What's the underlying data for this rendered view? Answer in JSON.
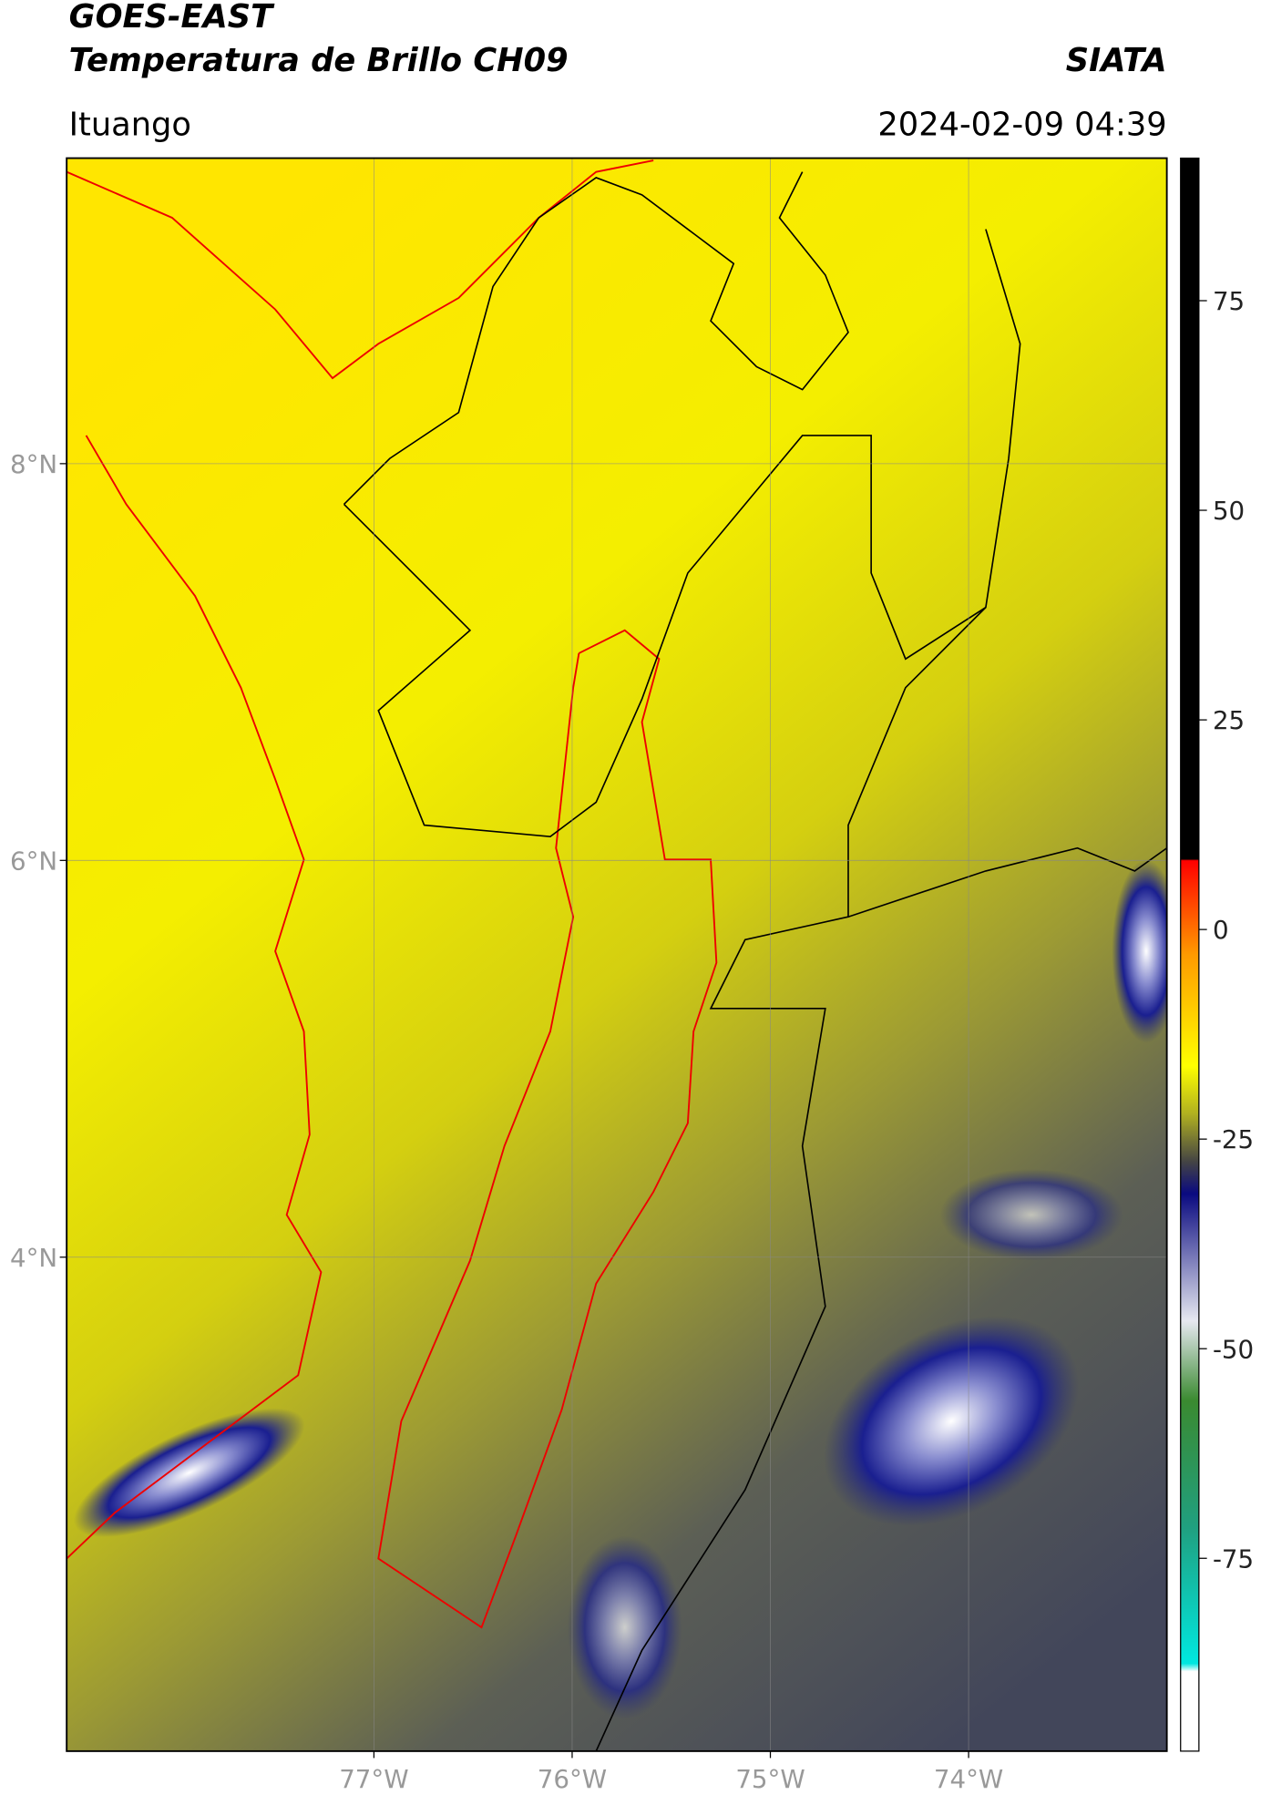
{
  "header": {
    "title_line1": "GOES-EAST",
    "title_line2": "Temperatura de Brillo CH09",
    "agency": "SIATA",
    "location": "Ituango",
    "datetime": "2024-02-09 04:39"
  },
  "map": {
    "lat_range": [
      1.51,
      9.54
    ],
    "lon_range": [
      -78.55,
      -73.0
    ],
    "lat_ticks": [
      {
        "value": 8,
        "label": "8°N"
      },
      {
        "value": 6,
        "label": "6°N"
      },
      {
        "value": 4,
        "label": "4°N"
      }
    ],
    "lon_ticks": [
      {
        "value": -77,
        "label": "77°W"
      },
      {
        "value": -76,
        "label": "76°W"
      },
      {
        "value": -75,
        "label": "75°W"
      },
      {
        "value": -74,
        "label": "74°W"
      }
    ]
  },
  "colorbar": {
    "range": [
      -98,
      92
    ],
    "ticks": [
      75,
      50,
      25,
      0,
      -25,
      -50,
      -75
    ]
  }
}
